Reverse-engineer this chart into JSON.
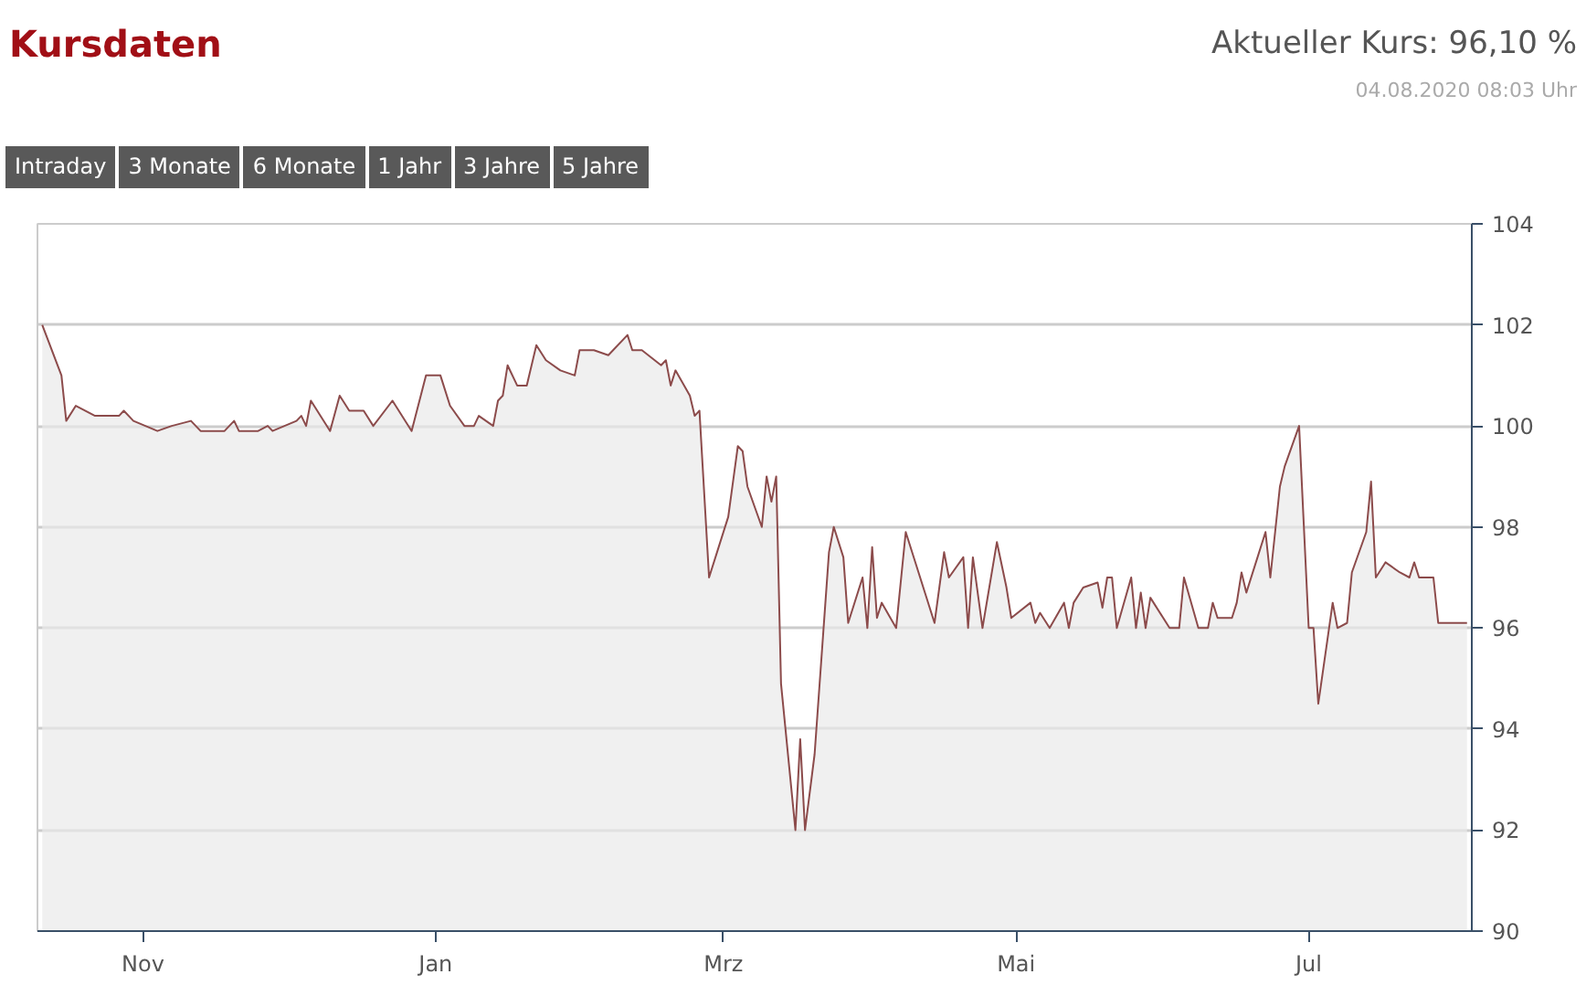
{
  "chart_data": {
    "type": "area",
    "title": "Kursdaten",
    "subtitle": "Aktueller Kurs: 96,10 %",
    "annotations": [
      "04.08.2020 08:03 Uhr",
      "Intraday",
      "3 Monate",
      "6 Monate",
      "1 Jahr",
      "3 Jahre",
      "5 Jahre"
    ],
    "x": [
      "2019-10-11",
      "2019-10-15",
      "2019-10-16",
      "2019-10-18",
      "2019-10-20",
      "2019-10-22",
      "2019-10-27",
      "2019-10-28",
      "2019-10-30",
      "2019-11-04",
      "2019-11-07",
      "2019-11-11",
      "2019-11-13",
      "2019-11-18",
      "2019-11-20",
      "2019-11-21",
      "2019-11-25",
      "2019-11-27",
      "2019-11-28",
      "2019-12-03",
      "2019-12-04",
      "2019-12-05",
      "2019-12-06",
      "2019-12-10",
      "2019-12-12",
      "2019-12-14",
      "2019-12-17",
      "2019-12-19",
      "2019-12-23",
      "2019-12-27",
      "2019-12-30",
      "2020-01-02",
      "2020-01-04",
      "2020-01-07",
      "2020-01-09",
      "2020-01-10",
      "2020-01-13",
      "2020-01-14",
      "2020-01-15",
      "2020-01-16",
      "2020-01-18",
      "2020-01-20",
      "2020-01-22",
      "2020-01-24",
      "2020-01-27",
      "2020-01-30",
      "2020-01-31",
      "2020-02-03",
      "2020-02-06",
      "2020-02-10",
      "2020-02-11",
      "2020-02-13",
      "2020-02-17",
      "2020-02-18",
      "2020-02-19",
      "2020-02-20",
      "2020-02-23",
      "2020-02-24",
      "2020-02-25",
      "2020-02-27",
      "2020-03-02",
      "2020-03-04",
      "2020-03-05",
      "2020-03-06",
      "2020-03-09",
      "2020-03-10",
      "2020-03-11",
      "2020-03-12",
      "2020-03-13",
      "2020-03-16",
      "2020-03-17",
      "2020-03-18",
      "2020-03-20",
      "2020-03-23",
      "2020-03-24",
      "2020-03-26",
      "2020-03-27",
      "2020-03-30",
      "2020-03-31",
      "2020-04-01",
      "2020-04-02",
      "2020-04-03",
      "2020-04-06",
      "2020-04-08",
      "2020-04-14",
      "2020-04-16",
      "2020-04-17",
      "2020-04-20",
      "2020-04-21",
      "2020-04-22",
      "2020-04-24",
      "2020-04-27",
      "2020-04-29",
      "2020-04-30",
      "2020-05-04",
      "2020-05-05",
      "2020-05-06",
      "2020-05-08",
      "2020-05-11",
      "2020-05-12",
      "2020-05-13",
      "2020-05-15",
      "2020-05-18",
      "2020-05-19",
      "2020-05-20",
      "2020-05-21",
      "2020-05-22",
      "2020-05-25",
      "2020-05-26",
      "2020-05-27",
      "2020-05-28",
      "2020-05-29",
      "2020-06-02",
      "2020-06-04",
      "2020-06-05",
      "2020-06-08",
      "2020-06-10",
      "2020-06-11",
      "2020-06-12",
      "2020-06-15",
      "2020-06-16",
      "2020-06-17",
      "2020-06-18",
      "2020-06-22",
      "2020-06-23",
      "2020-06-25",
      "2020-06-26",
      "2020-06-29",
      "2020-07-01",
      "2020-07-02",
      "2020-07-03",
      "2020-07-06",
      "2020-07-07",
      "2020-07-09",
      "2020-07-10",
      "2020-07-13",
      "2020-07-14",
      "2020-07-15",
      "2020-07-17",
      "2020-07-20",
      "2020-07-22",
      "2020-07-23",
      "2020-07-24",
      "2020-07-27",
      "2020-07-28",
      "2020-08-03"
    ],
    "series": [
      {
        "color": "#8c4b4b",
        "values": [
          102.0,
          101.0,
          100.1,
          100.4,
          100.3,
          100.2,
          100.2,
          100.3,
          100.1,
          99.9,
          100.0,
          100.1,
          99.9,
          99.9,
          100.1,
          99.9,
          99.9,
          100.0,
          99.9,
          100.1,
          100.2,
          100.0,
          100.5,
          99.9,
          100.6,
          100.3,
          100.3,
          100.0,
          100.5,
          99.9,
          101.0,
          101.0,
          100.4,
          100.0,
          100.0,
          100.2,
          100.0,
          100.5,
          100.6,
          101.2,
          100.8,
          100.8,
          101.6,
          101.3,
          101.1,
          101.0,
          101.5,
          101.5,
          101.4,
          101.8,
          101.5,
          101.5,
          101.2,
          101.3,
          100.8,
          101.1,
          100.6,
          100.2,
          100.3,
          97.0,
          98.2,
          99.6,
          99.5,
          98.8,
          98.0,
          99.0,
          98.5,
          99.0,
          94.9,
          92.0,
          93.8,
          92.0,
          93.5,
          97.5,
          98.0,
          97.4,
          96.1,
          97.0,
          96.0,
          97.6,
          96.2,
          96.5,
          96.0,
          97.9,
          96.1,
          97.5,
          97.0,
          97.4,
          96.0,
          97.4,
          96.0,
          97.7,
          96.8,
          96.2,
          96.5,
          96.1,
          96.3,
          96.0,
          96.5,
          96.0,
          96.5,
          96.8,
          96.9,
          96.4,
          97.0,
          97.0,
          96.0,
          97.0,
          96.0,
          96.7,
          96.0,
          96.6,
          96.0,
          96.0,
          97.0,
          96.0,
          96.0,
          96.5,
          96.2,
          96.2,
          96.5,
          97.1,
          96.7,
          97.9,
          97.0,
          98.8,
          99.2,
          100.0,
          96.0,
          96.0,
          94.5,
          96.5,
          96.0,
          96.1,
          97.1,
          97.9,
          98.9,
          97.0,
          97.3,
          97.1,
          97.0,
          97.3,
          97.0,
          97.0,
          96.1,
          96.1
        ]
      }
    ],
    "xlim": [
      "2019-10-10",
      "2020-08-04"
    ],
    "xticks": [
      {
        "value": "2019-11-01",
        "label": "Nov"
      },
      {
        "value": "2020-01-01",
        "label": "Jan"
      },
      {
        "value": "2020-03-01",
        "label": "Mrz"
      },
      {
        "value": "2020-05-01",
        "label": "Mai"
      },
      {
        "value": "2020-07-01",
        "label": "Jul"
      }
    ],
    "ylim": [
      90,
      104
    ],
    "yticks": [
      90,
      92,
      94,
      96,
      98,
      100,
      102,
      104
    ],
    "grid": true
  }
}
